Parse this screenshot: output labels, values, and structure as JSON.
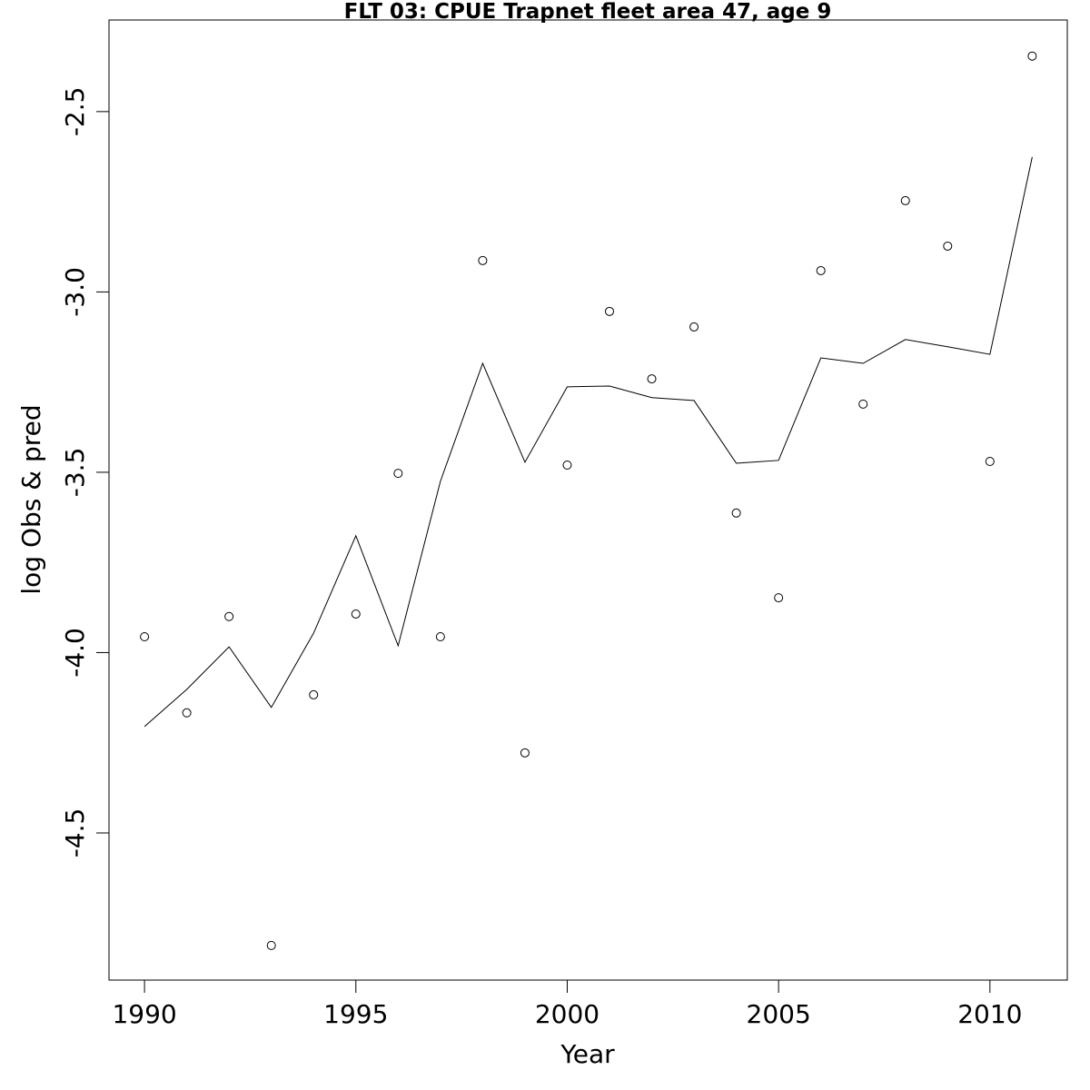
{
  "chart_data": {
    "type": "line",
    "title": "FLT 03: CPUE Trapnet fleet area 47, age 9",
    "x_label": "Year",
    "y_label": "log Obs & pred",
    "x": [
      1990,
      1991,
      1992,
      1993,
      1994,
      1995,
      1996,
      1997,
      1998,
      1999,
      2000,
      2001,
      2002,
      2003,
      2004,
      2005,
      2006,
      2007,
      2008,
      2009,
      2010,
      2011
    ],
    "series": [
      {
        "style": "points",
        "color": "#000000",
        "values": [
          -3.956,
          -4.167,
          -3.9,
          -4.812,
          -4.117,
          -3.893,
          -3.503,
          -3.956,
          -2.913,
          -4.278,
          -3.48,
          -3.054,
          -3.241,
          -3.097,
          -3.613,
          -3.848,
          -2.941,
          -3.311,
          -2.747,
          -2.873,
          -3.47,
          -2.346
        ]
      },
      {
        "style": "line",
        "color": "#000000",
        "values": [
          -4.205,
          -4.102,
          -3.984,
          -4.152,
          -3.946,
          -3.676,
          -3.981,
          -3.525,
          -3.198,
          -3.472,
          -3.263,
          -3.261,
          -3.293,
          -3.301,
          -3.475,
          -3.467,
          -3.183,
          -3.198,
          -3.132,
          -3.152,
          -3.173,
          -2.626
        ]
      }
    ],
    "xlim": [
      1989.16,
      2011.83
    ],
    "ylim": [
      -4.908,
      -2.246
    ],
    "xticks": [
      1990,
      1995,
      2000,
      2005,
      2010
    ],
    "yticks": [
      -2.5,
      {
        "value": -3.0,
        "label": "-3.0"
      },
      -3.5,
      {
        "value": -4.0,
        "label": "-4.0"
      },
      -4.5
    ],
    "grid": false
  }
}
